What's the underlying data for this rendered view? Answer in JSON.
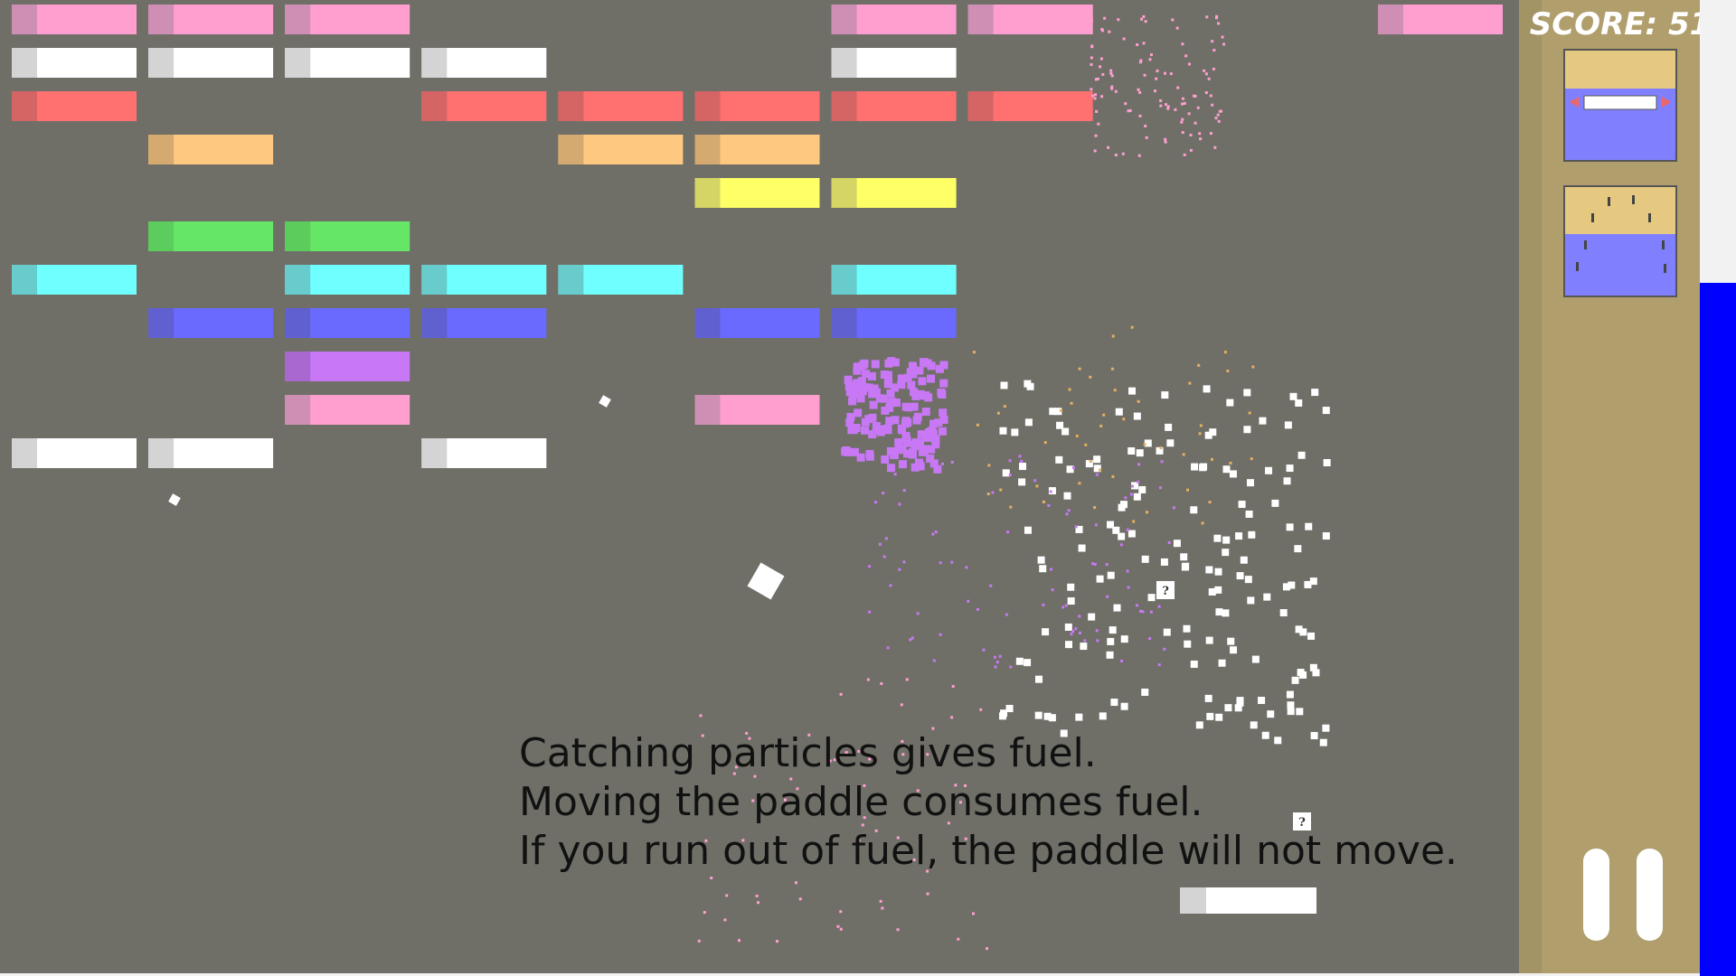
{
  "hud": {
    "score_label": "SCORE:",
    "score": 51
  },
  "tutorial": {
    "lines": [
      "Catching particles gives fuel.",
      "Moving the paddle consumes fuel.",
      "If you run out of fuel, the paddle will not move."
    ]
  },
  "powerups": [
    {
      "label": "?"
    },
    {
      "label": "?"
    }
  ]
}
